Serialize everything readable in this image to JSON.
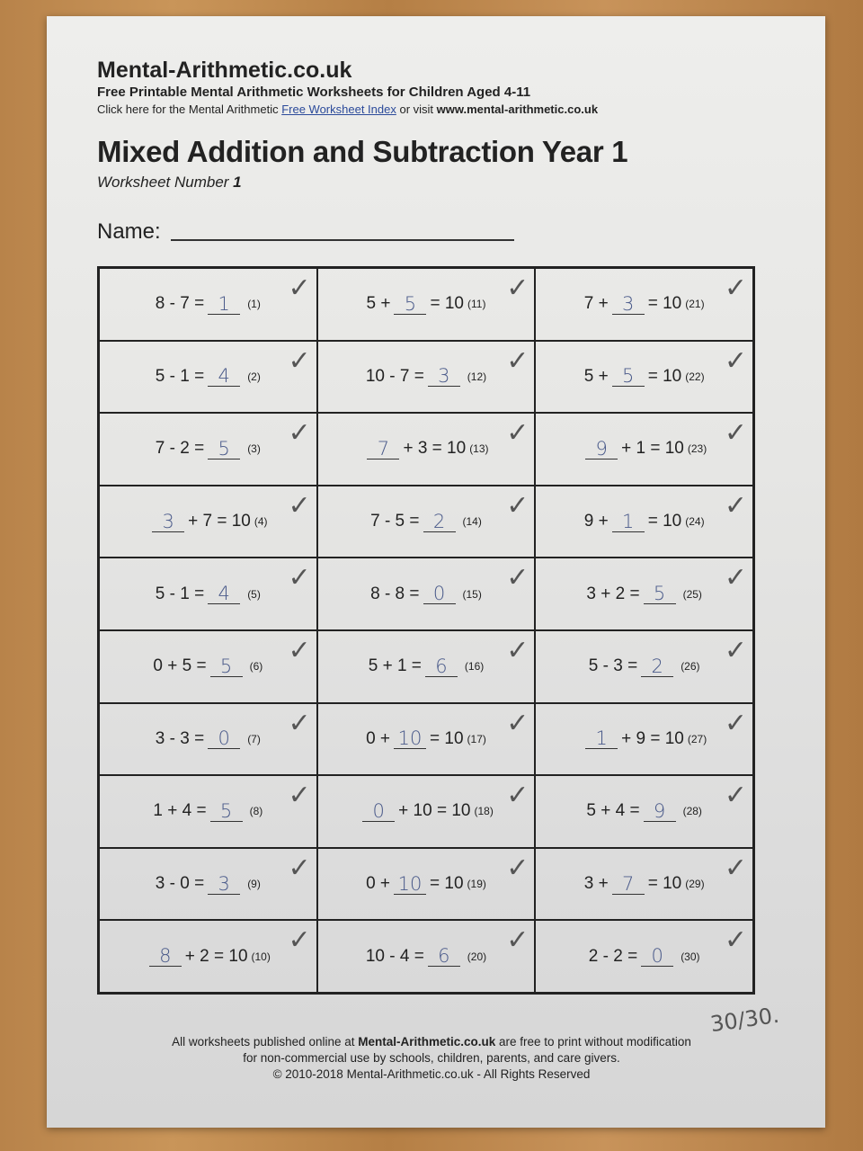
{
  "header": {
    "site": "Mental-Arithmetic.co.uk",
    "subtitle": "Free Printable Mental Arithmetic Worksheets for Children Aged 4-11",
    "click_prefix": "Click here for the Mental Arithmetic ",
    "index_link": "Free Worksheet Index",
    "click_middle": " or visit ",
    "url": "www.mental-arithmetic.co.uk"
  },
  "title": "Mixed Addition and Subtraction Year 1",
  "worksheet_label": "Worksheet Number ",
  "worksheet_number": "1",
  "name_label": "Name:",
  "tick_glyph": "✓",
  "questions": [
    {
      "before": "8 - 7 =",
      "answer": "1",
      "after": "",
      "num": "(1)"
    },
    {
      "before": "5 - 1 =",
      "answer": "4",
      "after": "",
      "num": "(2)"
    },
    {
      "before": "7 - 2 =",
      "answer": "5",
      "after": "",
      "num": "(3)"
    },
    {
      "before": "",
      "answer": "3",
      "after": "+ 7 = 10",
      "num": "(4)"
    },
    {
      "before": "5 - 1 =",
      "answer": "4",
      "after": "",
      "num": "(5)"
    },
    {
      "before": "0 + 5 =",
      "answer": "5",
      "after": "",
      "num": "(6)"
    },
    {
      "before": "3 - 3 =",
      "answer": "0",
      "after": "",
      "num": "(7)"
    },
    {
      "before": "1 + 4 =",
      "answer": "5",
      "after": "",
      "num": "(8)"
    },
    {
      "before": "3 - 0 =",
      "answer": "3",
      "after": "",
      "num": "(9)"
    },
    {
      "before": "",
      "answer": "8",
      "after": "+ 2 = 10",
      "num": "(10)"
    },
    {
      "before": "5 +",
      "answer": "5",
      "after": "= 10",
      "num": "(11)"
    },
    {
      "before": "10 - 7 =",
      "answer": "3",
      "after": "",
      "num": "(12)"
    },
    {
      "before": "",
      "answer": "7",
      "after": "+ 3 = 10",
      "num": "(13)"
    },
    {
      "before": "7 - 5 =",
      "answer": "2",
      "after": "",
      "num": "(14)"
    },
    {
      "before": "8 - 8 =",
      "answer": "0",
      "after": "",
      "num": "(15)"
    },
    {
      "before": "5 + 1 =",
      "answer": "6",
      "after": "",
      "num": "(16)"
    },
    {
      "before": "0 +",
      "answer": "10",
      "after": "= 10",
      "num": "(17)"
    },
    {
      "before": "",
      "answer": "0",
      "after": "+ 10 = 10",
      "num": "(18)"
    },
    {
      "before": "0 +",
      "answer": "10",
      "after": "= 10",
      "num": "(19)"
    },
    {
      "before": "10 - 4 =",
      "answer": "6",
      "after": "",
      "num": "(20)"
    },
    {
      "before": "7 +",
      "answer": "3",
      "after": "= 10",
      "num": "(21)"
    },
    {
      "before": "5 +",
      "answer": "5",
      "after": "= 10",
      "num": "(22)"
    },
    {
      "before": "",
      "answer": "9",
      "after": "+ 1 = 10",
      "num": "(23)"
    },
    {
      "before": "9 +",
      "answer": "1",
      "after": "= 10",
      "num": "(24)"
    },
    {
      "before": "3 + 2 =",
      "answer": "5",
      "after": "",
      "num": "(25)"
    },
    {
      "before": "5 - 3 =",
      "answer": "2",
      "after": "",
      "num": "(26)"
    },
    {
      "before": "",
      "answer": "1",
      "after": "+ 9 = 10",
      "num": "(27)"
    },
    {
      "before": "5 + 4 =",
      "answer": "9",
      "after": "",
      "num": "(28)"
    },
    {
      "before": "3 +",
      "answer": "7",
      "after": "= 10",
      "num": "(29)"
    },
    {
      "before": "2 - 2 =",
      "answer": "0",
      "after": "",
      "num": "(30)"
    }
  ],
  "score": "30/30.",
  "footer": {
    "line1_prefix": "All worksheets published online at ",
    "line1_bold": "Mental-Arithmetic.co.uk",
    "line1_suffix": " are free to print without modification",
    "line2": "for non-commercial use by schools, children, parents, and care givers.",
    "line3": "© 2010-2018 Mental-Arithmetic.co.uk - All Rights Reserved"
  },
  "colors": {
    "pencil": "#4a5a8a",
    "ink": "#222222",
    "paper": "#e6e6e4"
  }
}
